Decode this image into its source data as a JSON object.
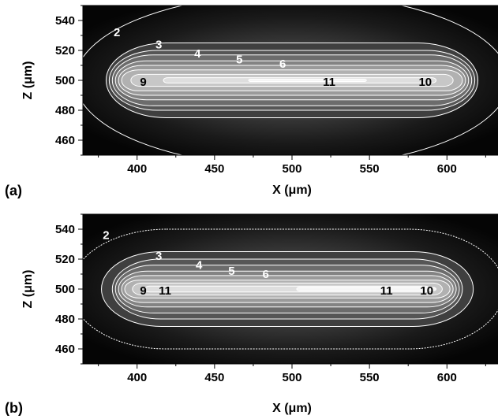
{
  "chart_data": [
    {
      "type": "heatmap",
      "panel_label": "(a)",
      "xlabel": "X (μm)",
      "ylabel": "Z (μm)",
      "xlim": [
        365,
        635
      ],
      "ylim": [
        450,
        550
      ],
      "x_ticks": [
        "400",
        "450",
        "500",
        "550",
        "600"
      ],
      "x_tick_values": [
        400,
        450,
        500,
        550,
        600
      ],
      "y_ticks": [
        "460",
        "480",
        "500",
        "520",
        "540"
      ],
      "y_tick_values": [
        460,
        480,
        500,
        520,
        540
      ],
      "contours": [
        {
          "level": 2,
          "cx": 500,
          "cz": 500,
          "a": 140,
          "b": 58
        },
        {
          "level": 3,
          "cx": 500,
          "cz": 500,
          "a": 120,
          "b": 25
        },
        {
          "level": 4,
          "cx": 500,
          "cz": 500,
          "a": 118,
          "b": 20
        },
        {
          "level": 5,
          "cx": 500,
          "cz": 500,
          "a": 116,
          "b": 17
        },
        {
          "level": 6,
          "cx": 500,
          "cz": 500,
          "a": 114,
          "b": 13
        },
        {
          "level": 7,
          "cx": 500,
          "cz": 500,
          "a": 112,
          "b": 10
        },
        {
          "level": 8,
          "cx": 500,
          "cz": 500,
          "a": 110,
          "b": 7
        },
        {
          "level": 9,
          "cx": 500,
          "cz": 500,
          "a": 104,
          "b": 4
        },
        {
          "level": 10,
          "cx": 505,
          "cz": 500,
          "a": 88,
          "b": 1.8
        },
        {
          "level": 11,
          "cx": 510,
          "cz": 500,
          "a": 38,
          "b": 0.8
        }
      ],
      "labels": [
        {
          "text": "2",
          "x": 387,
          "z": 532,
          "color": "#ffffff"
        },
        {
          "text": "3",
          "x": 414,
          "z": 524,
          "color": "#ffffff"
        },
        {
          "text": "4",
          "x": 439,
          "z": 518,
          "color": "#ffffff"
        },
        {
          "text": "5",
          "x": 466,
          "z": 514,
          "color": "#ffffff"
        },
        {
          "text": "6",
          "x": 494,
          "z": 511,
          "color": "#ffffff"
        },
        {
          "text": "9",
          "x": 404,
          "z": 499,
          "color": "#000000"
        },
        {
          "text": "11",
          "x": 524,
          "z": 499,
          "color": "#000000"
        },
        {
          "text": "10",
          "x": 586,
          "z": 499,
          "color": "#000000"
        }
      ]
    },
    {
      "type": "heatmap",
      "panel_label": "(b)",
      "xlabel": "X (μm)",
      "ylabel": "Z (μm)",
      "xlim": [
        365,
        635
      ],
      "ylim": [
        450,
        550
      ],
      "x_ticks": [
        "400",
        "450",
        "500",
        "550",
        "600"
      ],
      "x_tick_values": [
        400,
        450,
        500,
        550,
        600
      ],
      "y_ticks": [
        "460",
        "480",
        "500",
        "520",
        "540"
      ],
      "y_tick_values": [
        460,
        480,
        500,
        520,
        540
      ],
      "contours": [
        {
          "level": 2,
          "cx": 497,
          "cz": 500,
          "a": 140,
          "b": 40
        },
        {
          "level": 3,
          "cx": 497,
          "cz": 500,
          "a": 120,
          "b": 25
        },
        {
          "level": 4,
          "cx": 497,
          "cz": 500,
          "a": 113,
          "b": 20
        },
        {
          "level": 5,
          "cx": 497,
          "cz": 500,
          "a": 111,
          "b": 16
        },
        {
          "level": 6,
          "cx": 497,
          "cz": 500,
          "a": 109,
          "b": 12
        },
        {
          "level": 7,
          "cx": 497,
          "cz": 500,
          "a": 107,
          "b": 9
        },
        {
          "level": 8,
          "cx": 497,
          "cz": 500,
          "a": 105,
          "b": 6
        },
        {
          "level": 9,
          "cx": 497,
          "cz": 500,
          "a": 100,
          "b": 4
        },
        {
          "level": 10,
          "cx": 497,
          "cz": 500,
          "a": 92,
          "b": 2
        },
        {
          "level": 11,
          "cx": 548,
          "cz": 500,
          "a": 45,
          "b": 1.2
        }
      ],
      "labels": [
        {
          "text": "2",
          "x": 380,
          "z": 536,
          "color": "#ffffff"
        },
        {
          "text": "3",
          "x": 414,
          "z": 522,
          "color": "#ffffff"
        },
        {
          "text": "4",
          "x": 440,
          "z": 516,
          "color": "#ffffff"
        },
        {
          "text": "5",
          "x": 461,
          "z": 512,
          "color": "#ffffff"
        },
        {
          "text": "6",
          "x": 483,
          "z": 510,
          "color": "#ffffff"
        },
        {
          "text": "9",
          "x": 404,
          "z": 499,
          "color": "#000000"
        },
        {
          "text": "11",
          "x": 418,
          "z": 499,
          "color": "#000000"
        },
        {
          "text": "11",
          "x": 561,
          "z": 499,
          "color": "#000000"
        },
        {
          "text": "10",
          "x": 587,
          "z": 499,
          "color": "#000000"
        }
      ]
    }
  ]
}
